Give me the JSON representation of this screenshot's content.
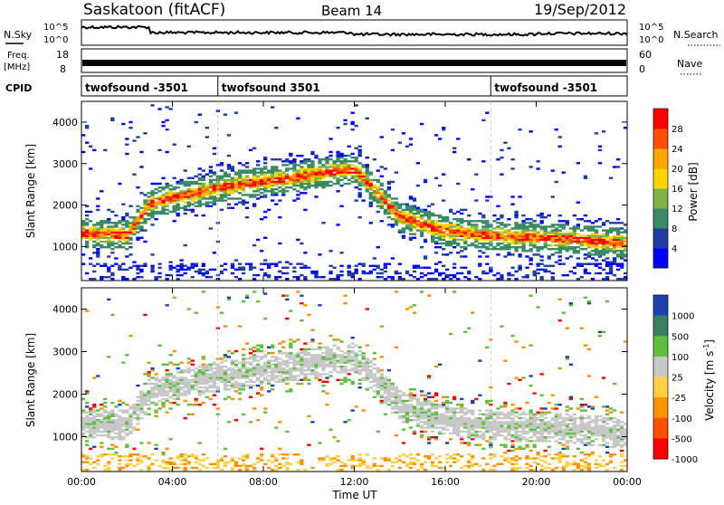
{
  "header": {
    "station": "Saskatoon (fitACF)",
    "beam": "Beam 14",
    "date": "19/Sep/2012"
  },
  "noise_panel": {
    "left_label": "N.Sky",
    "right_label": "N.Search",
    "left_ticks": [
      "10^5",
      "10^0"
    ],
    "right_ticks": [
      "10^5",
      "10^0"
    ]
  },
  "freq_panel": {
    "left_label_1": "Freq.",
    "left_label_2": "[MHz]",
    "right_label": "Nave",
    "left_ticks": [
      "18",
      "8"
    ],
    "right_ticks": [
      "60",
      "0"
    ]
  },
  "cpid_panel": {
    "label": "CPID",
    "segments": [
      {
        "start_hour": 0,
        "text": "twofsound -3501"
      },
      {
        "start_hour": 6,
        "text": "twofsound 3501"
      },
      {
        "start_hour": 18,
        "text": "twofsound -3501"
      }
    ]
  },
  "chart_data": [
    {
      "type": "heatmap",
      "name": "power-panel",
      "ylabel": "Slant Range [km]",
      "ylim": [
        180,
        4500
      ],
      "yticks": [
        1000,
        2000,
        3000,
        4000
      ],
      "xlim": [
        0,
        24
      ],
      "xticks": [
        0,
        4,
        8,
        12,
        16,
        20,
        24
      ],
      "colorbar": {
        "label": "Power [dB]",
        "tick_labels": [
          "28",
          "24",
          "20",
          "16",
          "12",
          "8",
          "4"
        ],
        "colors": [
          "#0000ff",
          "#1f3fa0",
          "#3a8a66",
          "#7fb34a",
          "#ffd400",
          "#ffa500",
          "#ff5000",
          "#ff0000"
        ]
      },
      "echo_band_center_km": [
        [
          0,
          1300
        ],
        [
          2,
          1250
        ],
        [
          3,
          2000
        ],
        [
          4,
          2150
        ],
        [
          6,
          2400
        ],
        [
          8,
          2550
        ],
        [
          10,
          2700
        ],
        [
          12,
          2850
        ],
        [
          13,
          2300
        ],
        [
          14,
          1700
        ],
        [
          16,
          1350
        ],
        [
          18,
          1250
        ],
        [
          20,
          1200
        ],
        [
          22,
          1150
        ],
        [
          24,
          1050
        ]
      ]
    },
    {
      "type": "heatmap",
      "name": "velocity-panel",
      "ylabel": "Slant Range [km]",
      "ylim": [
        180,
        4500
      ],
      "yticks": [
        1000,
        2000,
        3000,
        4000
      ],
      "xlim": [
        0,
        24
      ],
      "xticks": [
        0,
        4,
        8,
        12,
        16,
        20,
        24
      ],
      "xlabel": "Time UT",
      "xtick_labels": [
        "00:00",
        "04:00",
        "08:00",
        "12:00",
        "16:00",
        "20:00",
        "00:00"
      ],
      "colorbar": {
        "label": "Velocity [m s",
        "label_exp": "-1",
        "label_tail": "]",
        "tick_labels": [
          "1000",
          "500",
          "100",
          "25",
          "-25",
          "-100",
          "-500",
          "-1000"
        ],
        "colors": [
          "#2040b0",
          "#3a8060",
          "#5fc040",
          "#c8c8c8",
          "#ffd040",
          "#ff9000",
          "#ff5000",
          "#ff0000"
        ]
      }
    }
  ]
}
